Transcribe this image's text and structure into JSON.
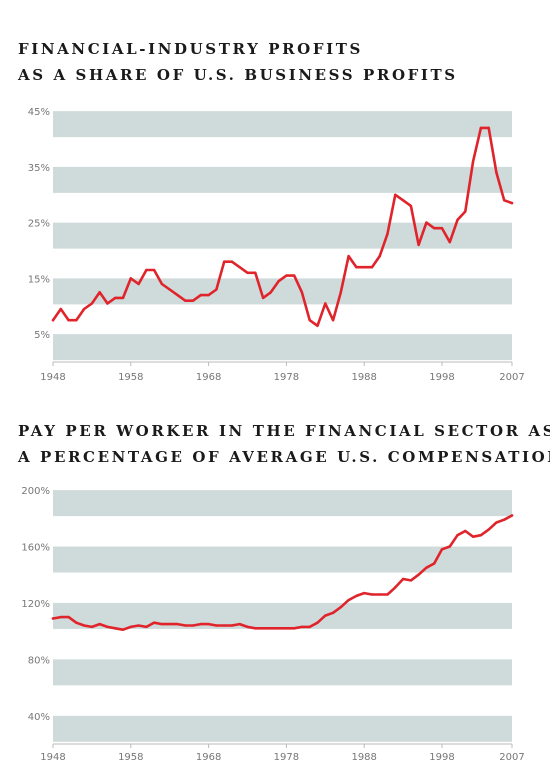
{
  "chart_data": [
    {
      "type": "line",
      "title_lines": [
        "FINANCIAL-INDUSTRY PROFITS",
        "AS A SHARE OF U.S. BUSINESS PROFITS"
      ],
      "xlabel": "",
      "ylabel": "",
      "x_ticks": [
        "1948",
        "1958",
        "1968",
        "1978",
        "1988",
        "1998",
        "2007"
      ],
      "y_ticks": [
        "5%",
        "15%",
        "25%",
        "35%",
        "45%"
      ],
      "xlim": [
        1948,
        2007
      ],
      "ylim": [
        0,
        47
      ],
      "grid": "alternating horizontal bands",
      "line_color": "#e0242b",
      "band_color": "#cfdadb",
      "x": [
        1948,
        1949,
        1950,
        1951,
        1952,
        1953,
        1954,
        1955,
        1956,
        1957,
        1958,
        1959,
        1960,
        1961,
        1962,
        1963,
        1964,
        1965,
        1966,
        1967,
        1968,
        1969,
        1970,
        1971,
        1972,
        1973,
        1974,
        1975,
        1976,
        1977,
        1978,
        1979,
        1980,
        1981,
        1982,
        1983,
        1984,
        1985,
        1986,
        1987,
        1988,
        1989,
        1990,
        1991,
        1992,
        1993,
        1994,
        1995,
        1996,
        1997,
        1998,
        1999,
        2000,
        2001,
        2002,
        2003,
        2004,
        2005,
        2006,
        2007
      ],
      "values": [
        7.5,
        9.5,
        7.5,
        7.5,
        9.5,
        10.5,
        12.5,
        10.5,
        11.5,
        11.5,
        15,
        14,
        16.5,
        16.5,
        14,
        13,
        12,
        11,
        11,
        12,
        12,
        13,
        18,
        18,
        17,
        16,
        16,
        11.5,
        12.5,
        14.5,
        15.5,
        15.5,
        12.5,
        7.5,
        6.5,
        10.5,
        7.5,
        12.5,
        19,
        17,
        17,
        17,
        19,
        23,
        30,
        29,
        28,
        21,
        25,
        24,
        24,
        21.5,
        25.5,
        27,
        36,
        42,
        42,
        34,
        29,
        28.5
      ]
    },
    {
      "type": "line",
      "title_lines": [
        "PAY PER WORKER IN THE FINANCIAL SECTOR AS",
        "A PERCENTAGE OF AVERAGE U.S. COMPENSATION"
      ],
      "xlabel": "",
      "ylabel": "",
      "x_ticks": [
        "1948",
        "1958",
        "1968",
        "1978",
        "1988",
        "1998",
        "2007"
      ],
      "y_ticks": [
        "40%",
        "80%",
        "120%",
        "160%",
        "200%"
      ],
      "xlim": [
        1948,
        2007
      ],
      "ylim": [
        20,
        210
      ],
      "grid": "alternating horizontal bands",
      "line_color": "#e0242b",
      "band_color": "#cfdadb",
      "x": [
        1948,
        1949,
        1950,
        1951,
        1952,
        1953,
        1954,
        1955,
        1956,
        1957,
        1958,
        1959,
        1960,
        1961,
        1962,
        1963,
        1964,
        1965,
        1966,
        1967,
        1968,
        1969,
        1970,
        1971,
        1972,
        1973,
        1974,
        1975,
        1976,
        1977,
        1978,
        1979,
        1980,
        1981,
        1982,
        1983,
        1984,
        1985,
        1986,
        1987,
        1988,
        1989,
        1990,
        1991,
        1992,
        1993,
        1994,
        1995,
        1996,
        1997,
        1998,
        1999,
        2000,
        2001,
        2002,
        2003,
        2004,
        2005,
        2006,
        2007
      ],
      "values": [
        109,
        110,
        110,
        106,
        104,
        103,
        105,
        103,
        102,
        101,
        103,
        104,
        103,
        106,
        105,
        105,
        105,
        104,
        104,
        105,
        105,
        104,
        104,
        104,
        105,
        103,
        102,
        102,
        102,
        102,
        102,
        102,
        103,
        103,
        106,
        111,
        113,
        117,
        122,
        125,
        127,
        126,
        126,
        126,
        131,
        137,
        136,
        140,
        145,
        148,
        158,
        160,
        168,
        171,
        167,
        168,
        172,
        177,
        179,
        182
      ]
    }
  ]
}
